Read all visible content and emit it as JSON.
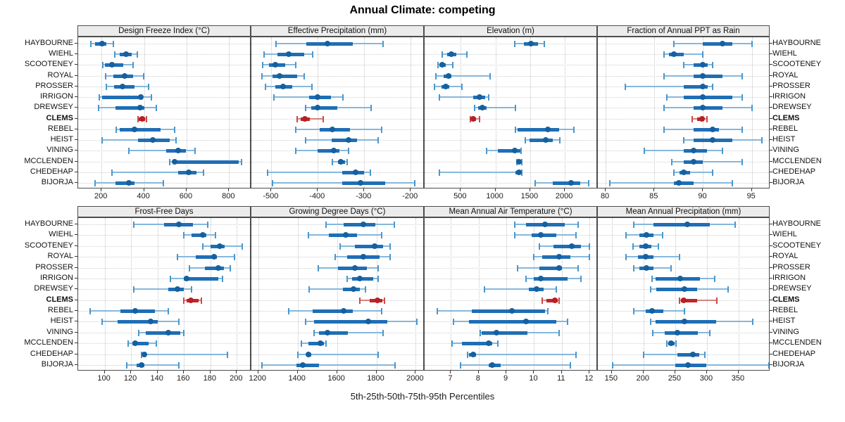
{
  "title": "Annual Climate: competing",
  "caption": "5th-25th-50th-75th-95th Percentiles",
  "colors": {
    "blue_whisker": "#85b8dc",
    "blue_cap": "#4a97cd",
    "blue_iqr": "#1f6eb5",
    "blue_dot": "#15609f",
    "red_whisker": "#d4827f",
    "red_cap": "#cc4b48",
    "red_iqr": "#c02428",
    "red_dot": "#b81f24",
    "grid": "#c3c3c3",
    "strip_bg": "#ececec",
    "border": "#4d4d4d"
  },
  "chart_data": {
    "type": "dot-interval",
    "percentile_levels": [
      5,
      25,
      50,
      75,
      95
    ],
    "highlight_site": "CLEMS",
    "sites": [
      "HAYBOURNE",
      "WIEHL",
      "SCOOTENEY",
      "ROYAL",
      "PROSSER",
      "IRRIGON",
      "DREWSEY",
      "CLEMS",
      "REBEL",
      "HEIST",
      "VINING",
      "MCCLENDEN",
      "CHEDEHAP",
      "BIJORJA"
    ],
    "panels": [
      {
        "title": "Design Freeze Index (°C)",
        "xlim": [
          90,
          905
        ],
        "ticks": [
          200,
          400,
          600,
          800
        ],
        "values": [
          [
            150,
            170,
            202,
            222,
            257
          ],
          [
            263,
            285,
            314,
            342,
            367
          ],
          [
            205,
            216,
            248,
            301,
            348
          ],
          [
            220,
            257,
            310,
            350,
            397
          ],
          [
            224,
            260,
            298,
            356,
            420
          ],
          [
            190,
            202,
            385,
            395,
            433
          ],
          [
            185,
            265,
            382,
            400,
            457
          ],
          [
            370,
            376,
            391,
            404,
            411
          ],
          [
            270,
            285,
            354,
            477,
            543
          ],
          [
            204,
            371,
            441,
            520,
            549
          ],
          [
            327,
            503,
            562,
            596,
            640
          ],
          [
            520,
            535,
            545,
            845,
            860
          ],
          [
            250,
            560,
            610,
            645,
            680
          ],
          [
            170,
            265,
            330,
            355,
            490
          ]
        ]
      },
      {
        "title": "Effective Precipitation (mm)",
        "xlim": [
          -543,
          -170
        ],
        "ticks": [
          -500,
          -400,
          -300,
          -200
        ],
        "values": [
          [
            -490,
            -425,
            -380,
            -325,
            -260
          ],
          [
            -515,
            -487,
            -463,
            -430,
            -411
          ],
          [
            -518,
            -505,
            -492,
            -470,
            -447
          ],
          [
            -520,
            -497,
            -482,
            -444,
            -429
          ],
          [
            -512,
            -492,
            -475,
            -455,
            -413
          ],
          [
            -495,
            -419,
            -400,
            -371,
            -346
          ],
          [
            -427,
            -414,
            -400,
            -358,
            -285
          ],
          [
            -444,
            -437,
            -428,
            -417,
            -389
          ],
          [
            -447,
            -396,
            -368,
            -330,
            -262
          ],
          [
            -427,
            -370,
            -333,
            -316,
            -270
          ],
          [
            -447,
            -401,
            -365,
            -353,
            -333
          ],
          [
            -368,
            -356,
            -351,
            -342,
            -337
          ],
          [
            -508,
            -347,
            -319,
            -301,
            -287
          ],
          [
            -497,
            -348,
            -308,
            -255,
            -191
          ]
        ]
      },
      {
        "title": "Elevation (m)",
        "xlim": [
          -20,
          2475
        ],
        "ticks": [
          500,
          1000,
          1500,
          2000
        ],
        "values": [
          [
            1280,
            1405,
            1515,
            1610,
            1700
          ],
          [
            235,
            305,
            370,
            440,
            585
          ],
          [
            175,
            190,
            230,
            285,
            390
          ],
          [
            140,
            250,
            320,
            370,
            925
          ],
          [
            125,
            225,
            280,
            335,
            515
          ],
          [
            190,
            675,
            770,
            855,
            905
          ],
          [
            705,
            755,
            810,
            870,
            1285
          ],
          [
            635,
            655,
            680,
            720,
            770
          ],
          [
            1285,
            1320,
            1755,
            1915,
            2135
          ],
          [
            1430,
            1490,
            1720,
            1830,
            1930
          ],
          [
            875,
            1030,
            1280,
            1355,
            1365
          ],
          [
            1305,
            1315,
            1340,
            1370,
            1380
          ],
          [
            190,
            1285,
            1340,
            1370,
            1380
          ],
          [
            1570,
            1830,
            2085,
            2220,
            2340
          ]
        ]
      },
      {
        "title": "Fraction of Annual PPT as Rain",
        "xlim": [
          79.2,
          96.9
        ],
        "ticks": [
          80,
          85,
          90,
          95
        ],
        "values": [
          [
            87,
            90,
            92,
            93,
            95
          ],
          [
            86,
            86.5,
            87,
            88,
            90
          ],
          [
            88,
            89,
            90,
            90.5,
            91
          ],
          [
            86,
            89,
            90,
            92,
            94
          ],
          [
            82,
            88,
            90,
            90.5,
            91
          ],
          [
            86.3,
            88,
            90,
            93,
            94
          ],
          [
            86,
            89,
            90,
            92,
            95
          ],
          [
            88.9,
            89.4,
            89.9,
            90.1,
            90.4
          ],
          [
            86,
            89,
            91,
            91.6,
            94
          ],
          [
            88,
            89,
            91,
            93,
            96
          ],
          [
            84,
            88,
            89,
            90.4,
            92
          ],
          [
            86.8,
            88,
            89,
            90,
            94
          ],
          [
            87,
            87.6,
            88,
            88.7,
            91
          ],
          [
            80.4,
            87,
            87.5,
            89,
            93
          ]
        ]
      },
      {
        "title": "Frost-Free Days",
        "xlim": [
          80,
          211
        ],
        "ticks": [
          100,
          120,
          140,
          160,
          180,
          200
        ],
        "values": [
          [
            122,
            145,
            156,
            167,
            178
          ],
          [
            160,
            166,
            174,
            177,
            184
          ],
          [
            174,
            180,
            187,
            191,
            204
          ],
          [
            155,
            169,
            183,
            185,
            198
          ],
          [
            164,
            176,
            186,
            190,
            195
          ],
          [
            150,
            160,
            162,
            186,
            189
          ],
          [
            122,
            148,
            155,
            160,
            166
          ],
          [
            160,
            162,
            165,
            171,
            173
          ],
          [
            89,
            112,
            123,
            138,
            148
          ],
          [
            98,
            110,
            135,
            140,
            156
          ],
          [
            126,
            131,
            148,
            157,
            160
          ],
          [
            118,
            121,
            123,
            133,
            139
          ],
          [
            128,
            129,
            130,
            131,
            193
          ],
          [
            117,
            124,
            128,
            130,
            156
          ]
        ]
      },
      {
        "title": "Growing Degree Days (°C)",
        "xlim": [
          1165,
          2045
        ],
        "ticks": [
          1200,
          1400,
          1600,
          1800,
          2000
        ],
        "values": [
          [
            1545,
            1635,
            1735,
            1795,
            1890
          ],
          [
            1455,
            1560,
            1645,
            1700,
            1825
          ],
          [
            1615,
            1690,
            1790,
            1835,
            1870
          ],
          [
            1590,
            1650,
            1735,
            1815,
            1870
          ],
          [
            1505,
            1605,
            1690,
            1750,
            1810
          ],
          [
            1650,
            1678,
            1716,
            1785,
            1810
          ],
          [
            1460,
            1630,
            1685,
            1715,
            1745
          ],
          [
            1715,
            1765,
            1805,
            1830,
            1840
          ],
          [
            1355,
            1475,
            1635,
            1680,
            1825
          ],
          [
            1440,
            1485,
            1760,
            1855,
            2005
          ],
          [
            1485,
            1510,
            1550,
            1655,
            1835
          ],
          [
            1420,
            1455,
            1515,
            1535,
            1545
          ],
          [
            1400,
            1445,
            1455,
            1470,
            1810
          ],
          [
            1220,
            1395,
            1425,
            1510,
            1895
          ]
        ]
      },
      {
        "title": "Mean Annual Air Temperature (°C)",
        "xlim": [
          6.05,
          12.3
        ],
        "ticks": [
          7,
          8,
          9,
          10,
          11,
          12
        ],
        "values": [
          [
            9.3,
            9.7,
            10.4,
            11.1,
            11.6
          ],
          [
            9.3,
            9.9,
            10.25,
            10.8,
            11.5
          ],
          [
            10.2,
            10.7,
            11.35,
            11.7,
            12.0
          ],
          [
            10.0,
            10.3,
            10.9,
            11.3,
            12.0
          ],
          [
            9.4,
            10.2,
            10.9,
            11.0,
            11.6
          ],
          [
            9.7,
            10.0,
            10.25,
            11.2,
            11.7
          ],
          [
            8.2,
            9.8,
            10.1,
            10.35,
            10.8
          ],
          [
            10.3,
            10.45,
            10.75,
            10.85,
            10.9
          ],
          [
            6.5,
            7.75,
            9.2,
            10.4,
            10.5
          ],
          [
            7.1,
            7.65,
            9.7,
            10.8,
            11.2
          ],
          [
            8.05,
            8.1,
            8.65,
            9.75,
            10.9
          ],
          [
            7.05,
            7.4,
            8.35,
            8.5,
            8.7
          ],
          [
            7.6,
            7.65,
            7.8,
            7.9,
            11.5
          ],
          [
            7.35,
            8.35,
            8.5,
            8.8,
            11.3
          ]
        ]
      },
      {
        "title": "Mean Annual Precipitation (mm)",
        "xlim": [
          128,
          400
        ],
        "ticks": [
          150,
          200,
          250,
          300,
          350
        ],
        "values": [
          [
            185,
            216,
            269,
            304,
            344
          ],
          [
            172,
            193,
            205,
            216,
            230
          ],
          [
            184,
            194,
            204,
            212,
            223
          ],
          [
            172,
            191,
            203,
            216,
            257
          ],
          [
            185,
            194,
            205,
            216,
            244
          ],
          [
            214,
            219,
            258,
            289,
            312
          ],
          [
            211,
            220,
            265,
            284,
            333
          ],
          [
            257,
            259,
            263,
            284,
            316
          ],
          [
            185,
            203,
            213,
            231,
            264
          ],
          [
            211,
            219,
            264,
            315,
            372
          ],
          [
            215,
            234,
            254,
            286,
            304
          ],
          [
            237,
            239,
            243,
            249,
            251
          ],
          [
            200,
            253,
            278,
            288,
            297
          ],
          [
            151,
            250,
            270,
            299,
            398
          ]
        ]
      }
    ]
  }
}
